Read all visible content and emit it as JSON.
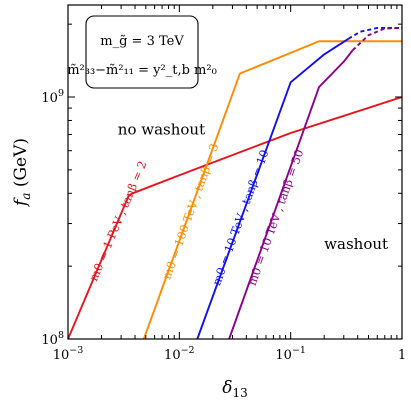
{
  "chart_data": {
    "type": "line",
    "xlabel": "δ13",
    "ylabel": "f_a (GeV)",
    "xscale": "log",
    "yscale": "log",
    "xlim": [
      0.001,
      1
    ],
    "ylim": [
      100000000.0,
      2400000000.0
    ],
    "grid": false,
    "x_ticks": [
      {
        "value": 0.001,
        "label_base": "10",
        "label_exp": "−3"
      },
      {
        "value": 0.01,
        "label_base": "10",
        "label_exp": "−2"
      },
      {
        "value": 0.1,
        "label_base": "10",
        "label_exp": "−1"
      },
      {
        "value": 1,
        "label_base": "1",
        "label_exp": ""
      }
    ],
    "y_ticks": [
      {
        "value": 100000000.0,
        "label_base": "10",
        "label_exp": "8"
      },
      {
        "value": 1000000000.0,
        "label_base": "10",
        "label_exp": "9"
      }
    ],
    "legend_box": {
      "line1": "m_g̃ = 3 TeV",
      "line2": "m̃²₃₃−m̃²₁₁ = y²_t,b m²₀"
    },
    "regions": [
      {
        "label": "no washout",
        "x": 0.0028,
        "y": 700000000.0
      },
      {
        "label": "washout",
        "x": 0.2,
        "y": 235000000.0
      }
    ],
    "series": [
      {
        "name": "m0 = 1 PeV , tanβ = 2",
        "color": "#e8141c",
        "points": [
          [
            0.001,
            100000000.0
          ],
          [
            0.0035,
            390000000.0
          ],
          [
            0.0038,
            400000000.0
          ],
          [
            0.01,
            475000000.0
          ],
          [
            0.1,
            710000000.0
          ],
          [
            1,
            1000000000.0
          ]
        ],
        "dashed_points": [],
        "label_pos": [
          0.0018,
          172000000.0
        ]
      },
      {
        "name": "m0 = 100 TeV , tanβ = 3",
        "color": "#ff8c00",
        "points": [
          [
            0.0048,
            100000000.0
          ],
          [
            0.035,
            1250000000.0
          ],
          [
            0.18,
            1700000000.0
          ],
          [
            1,
            1700000000.0
          ]
        ],
        "dashed_points": [],
        "label_pos": [
          0.0082,
          175000000.0
        ]
      },
      {
        "name": "m0 = 10 TeV , tanβ = 10",
        "color": "#1010ee",
        "points": [
          [
            0.0145,
            100000000.0
          ],
          [
            0.1,
            1150000000.0
          ],
          [
            0.2,
            1500000000.0
          ],
          [
            0.33,
            1740000000.0
          ]
        ],
        "dashed_points": [
          [
            0.33,
            1740000000.0
          ],
          [
            0.42,
            1860000000.0
          ],
          [
            0.6,
            1930000000.0
          ],
          [
            1,
            1930000000.0
          ]
        ],
        "label_pos": [
          0.023,
          165000000.0
        ]
      },
      {
        "name": "m0 = 10 TeV , tanβ = 50",
        "color": "#8b008b",
        "points": [
          [
            0.028,
            100000000.0
          ],
          [
            0.18,
            1100000000.0
          ],
          [
            0.3,
            1400000000.0
          ],
          [
            0.36,
            1560000000.0
          ]
        ],
        "dashed_points": [
          [
            0.36,
            1560000000.0
          ],
          [
            0.5,
            1800000000.0
          ],
          [
            0.7,
            1920000000.0
          ],
          [
            1,
            1930000000.0
          ]
        ],
        "label_pos": [
          0.048,
          165000000.0
        ]
      }
    ]
  }
}
